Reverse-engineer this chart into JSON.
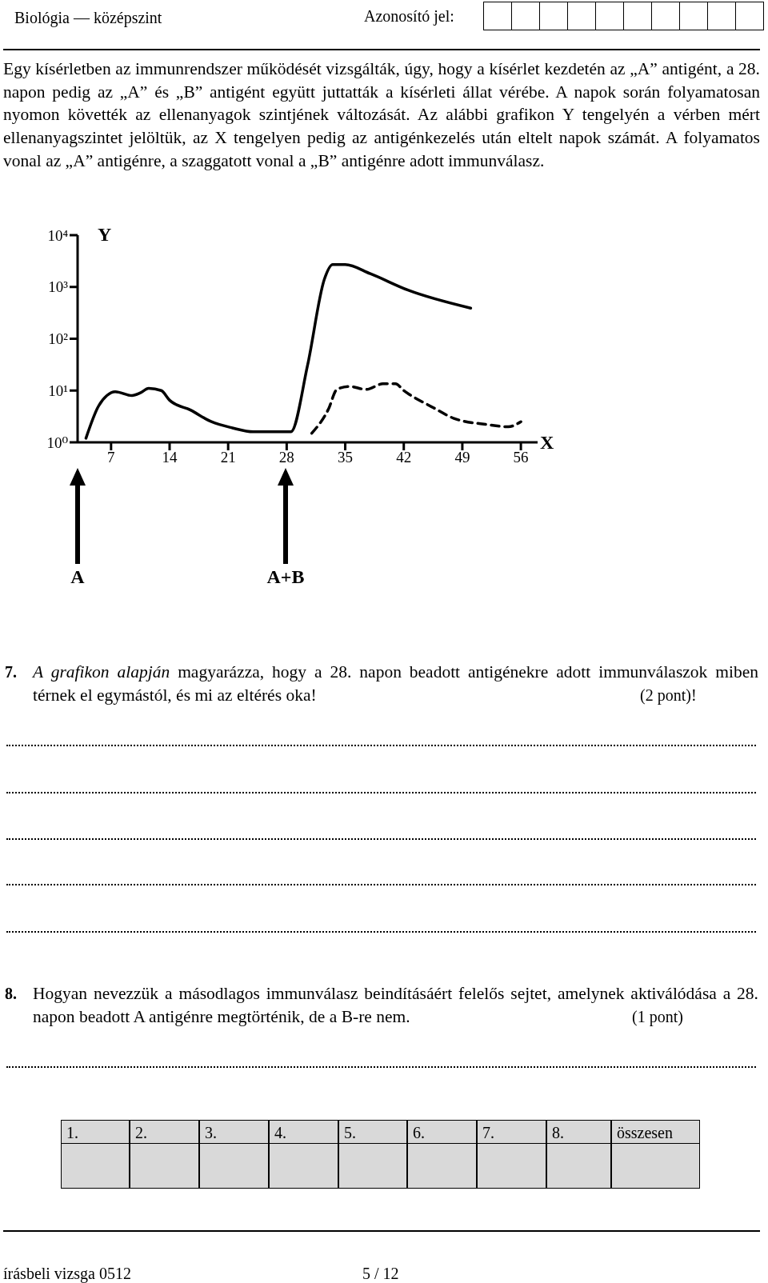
{
  "chart_data": {
    "type": "line",
    "xlabel": "X",
    "ylabel": "Y",
    "xlim": [
      3,
      58
    ],
    "xticks": [
      7,
      14,
      21,
      28,
      35,
      42,
      49,
      56
    ],
    "ylim": [
      1,
      10000
    ],
    "log": true,
    "yticks": [
      {
        "value": 1,
        "label": "10⁰"
      },
      {
        "value": 10,
        "label": "10¹"
      },
      {
        "value": 100,
        "label": "10²"
      },
      {
        "value": 1000,
        "label": "10³"
      },
      {
        "value": 10000,
        "label": "10⁴"
      }
    ],
    "marker": "none",
    "series": [
      {
        "color": "#000000",
        "line_style": "solid",
        "x": [
          4,
          5.5,
          6.5,
          7.5,
          9.5,
          10.5,
          11.5,
          13,
          14,
          16.5,
          19,
          21.5,
          24,
          28.5,
          30.5,
          32.5,
          33.5,
          35,
          38,
          42.5,
          50
        ],
        "values": [
          1.2,
          5,
          8,
          9.5,
          8,
          9,
          11,
          10,
          6.5,
          4.2,
          2.5,
          1.9,
          1.6,
          1.6,
          31,
          1400,
          2700,
          2700,
          1800,
          870,
          390
        ]
      },
      {
        "color": "#000000",
        "line_style": "dashed",
        "x": [
          31,
          33,
          34,
          35.5,
          37.5,
          39.5,
          41,
          42,
          45.5,
          48,
          52,
          54.5,
          56
        ],
        "values": [
          1.5,
          4.4,
          10.5,
          12,
          10.5,
          13.5,
          13.5,
          10,
          4.7,
          2.9,
          2.2,
          2,
          2.5
        ]
      }
    ],
    "annotations": [
      "Biológia — középszint",
      "Azonosító jel:",
      "Egy kísérletben az immunrendszer működését vizsgálták, úgy, hogy a kísérlet kezdetén az „A” antigént, a 28. napon pedig az „A” és „B” antigént együtt juttatták a kísérleti állat vérébe. A napok során folyamatosan nyomon követték az ellenanyagok szintjének változását. Az alábbi grafikon Y tengelyén a vérben mért ellenanyagszintet jelöltük, az X tengelyen pedig az antigénkezelés után eltelt napok számát. A folyamatos vonal az „A” antigénre, a szaggatott vonal a „B” antigénre adott immunválasz.",
      "A",
      "A+B",
      "7.",
      "A grafikon alapján",
      "magyarázza, hogy a 28. napon beadott antigénekre adott immunválaszok miben térnek el egymástól, és mi az eltérés oka!",
      "(2 pont)!",
      "8.",
      "Hogyan nevezzük a másodlagos immunválasz beindításáért felelős sejtet, amelynek aktiválódása a 28. napon beadott A antigénre megtörténik, de a B-re nem.",
      "(1 pont)",
      "1.",
      "2.",
      "3.",
      "4.",
      "5.",
      "6.",
      "7.",
      "8.",
      "összesen",
      "írásbeli vizsga 0512",
      "5 / 12"
    ]
  }
}
